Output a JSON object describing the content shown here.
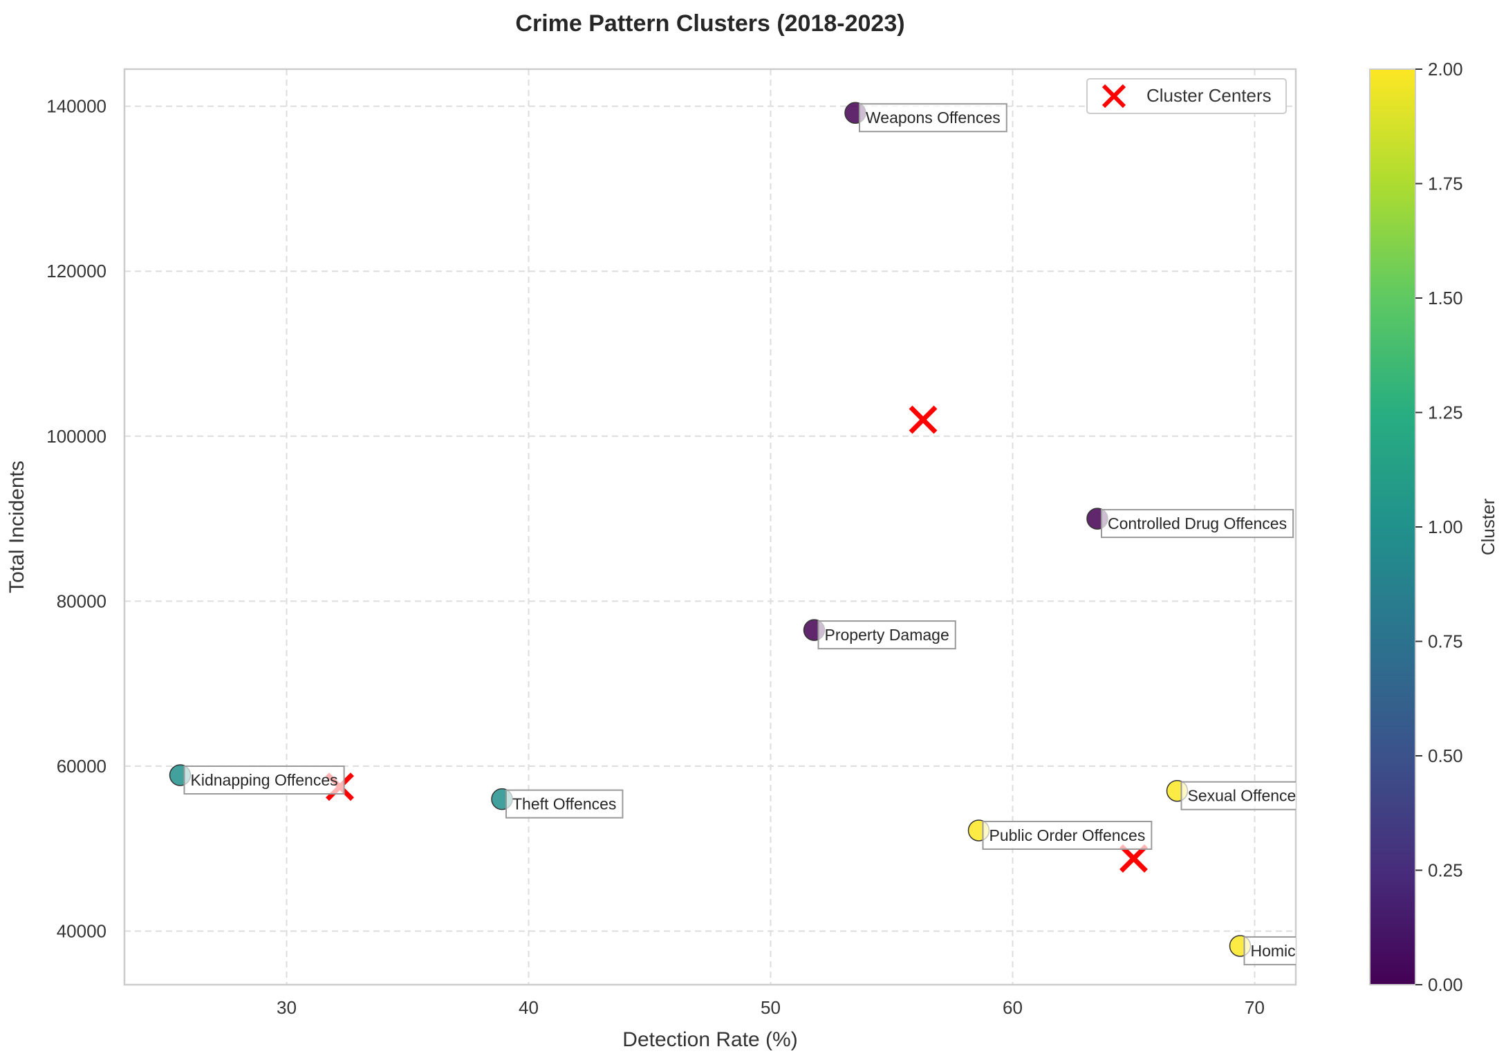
{
  "chart_data": {
    "type": "scatter",
    "title": "Crime Pattern Clusters (2018-2023)",
    "xlabel": "Detection Rate (%)",
    "ylabel": "Total Incidents",
    "xlim": [
      23.3,
      71.7
    ],
    "ylim": [
      33500,
      144500
    ],
    "xticks": [
      30,
      40,
      50,
      60,
      70
    ],
    "yticks": [
      40000,
      60000,
      80000,
      100000,
      120000,
      140000
    ],
    "grid": true,
    "legend": {
      "position": "top-right",
      "entries": [
        "Cluster Centers"
      ]
    },
    "points": [
      {
        "label": "Weapons Offences",
        "x": 53.5,
        "y": 139200,
        "cluster": 0
      },
      {
        "label": "Controlled Drug Offences",
        "x": 63.5,
        "y": 90000,
        "cluster": 0
      },
      {
        "label": "Property Damage",
        "x": 51.8,
        "y": 76500,
        "cluster": 0
      },
      {
        "label": "Kidnapping Offences",
        "x": 25.6,
        "y": 58900,
        "cluster": 1
      },
      {
        "label": "Theft Offences",
        "x": 38.9,
        "y": 56000,
        "cluster": 1
      },
      {
        "label": "Sexual Offences",
        "x": 66.8,
        "y": 57000,
        "cluster": 2
      },
      {
        "label": "Public Order Offences",
        "x": 58.6,
        "y": 52200,
        "cluster": 2
      },
      {
        "label": "Homicide Offences",
        "x": 69.4,
        "y": 38200,
        "cluster": 2
      }
    ],
    "centers": [
      {
        "x": 56.3,
        "y": 102000
      },
      {
        "x": 32.2,
        "y": 57500
      },
      {
        "x": 65.0,
        "y": 48800
      }
    ],
    "cluster_colors": [
      "#440154",
      "#21918c",
      "#fde725"
    ],
    "center_color": "#ff0000",
    "colorbar": {
      "label": "Cluster",
      "range": [
        0,
        2
      ],
      "ticks": [
        "0.00",
        "0.25",
        "0.50",
        "0.75",
        "1.00",
        "1.25",
        "1.50",
        "1.75",
        "2.00"
      ],
      "colormap": "viridis"
    }
  }
}
